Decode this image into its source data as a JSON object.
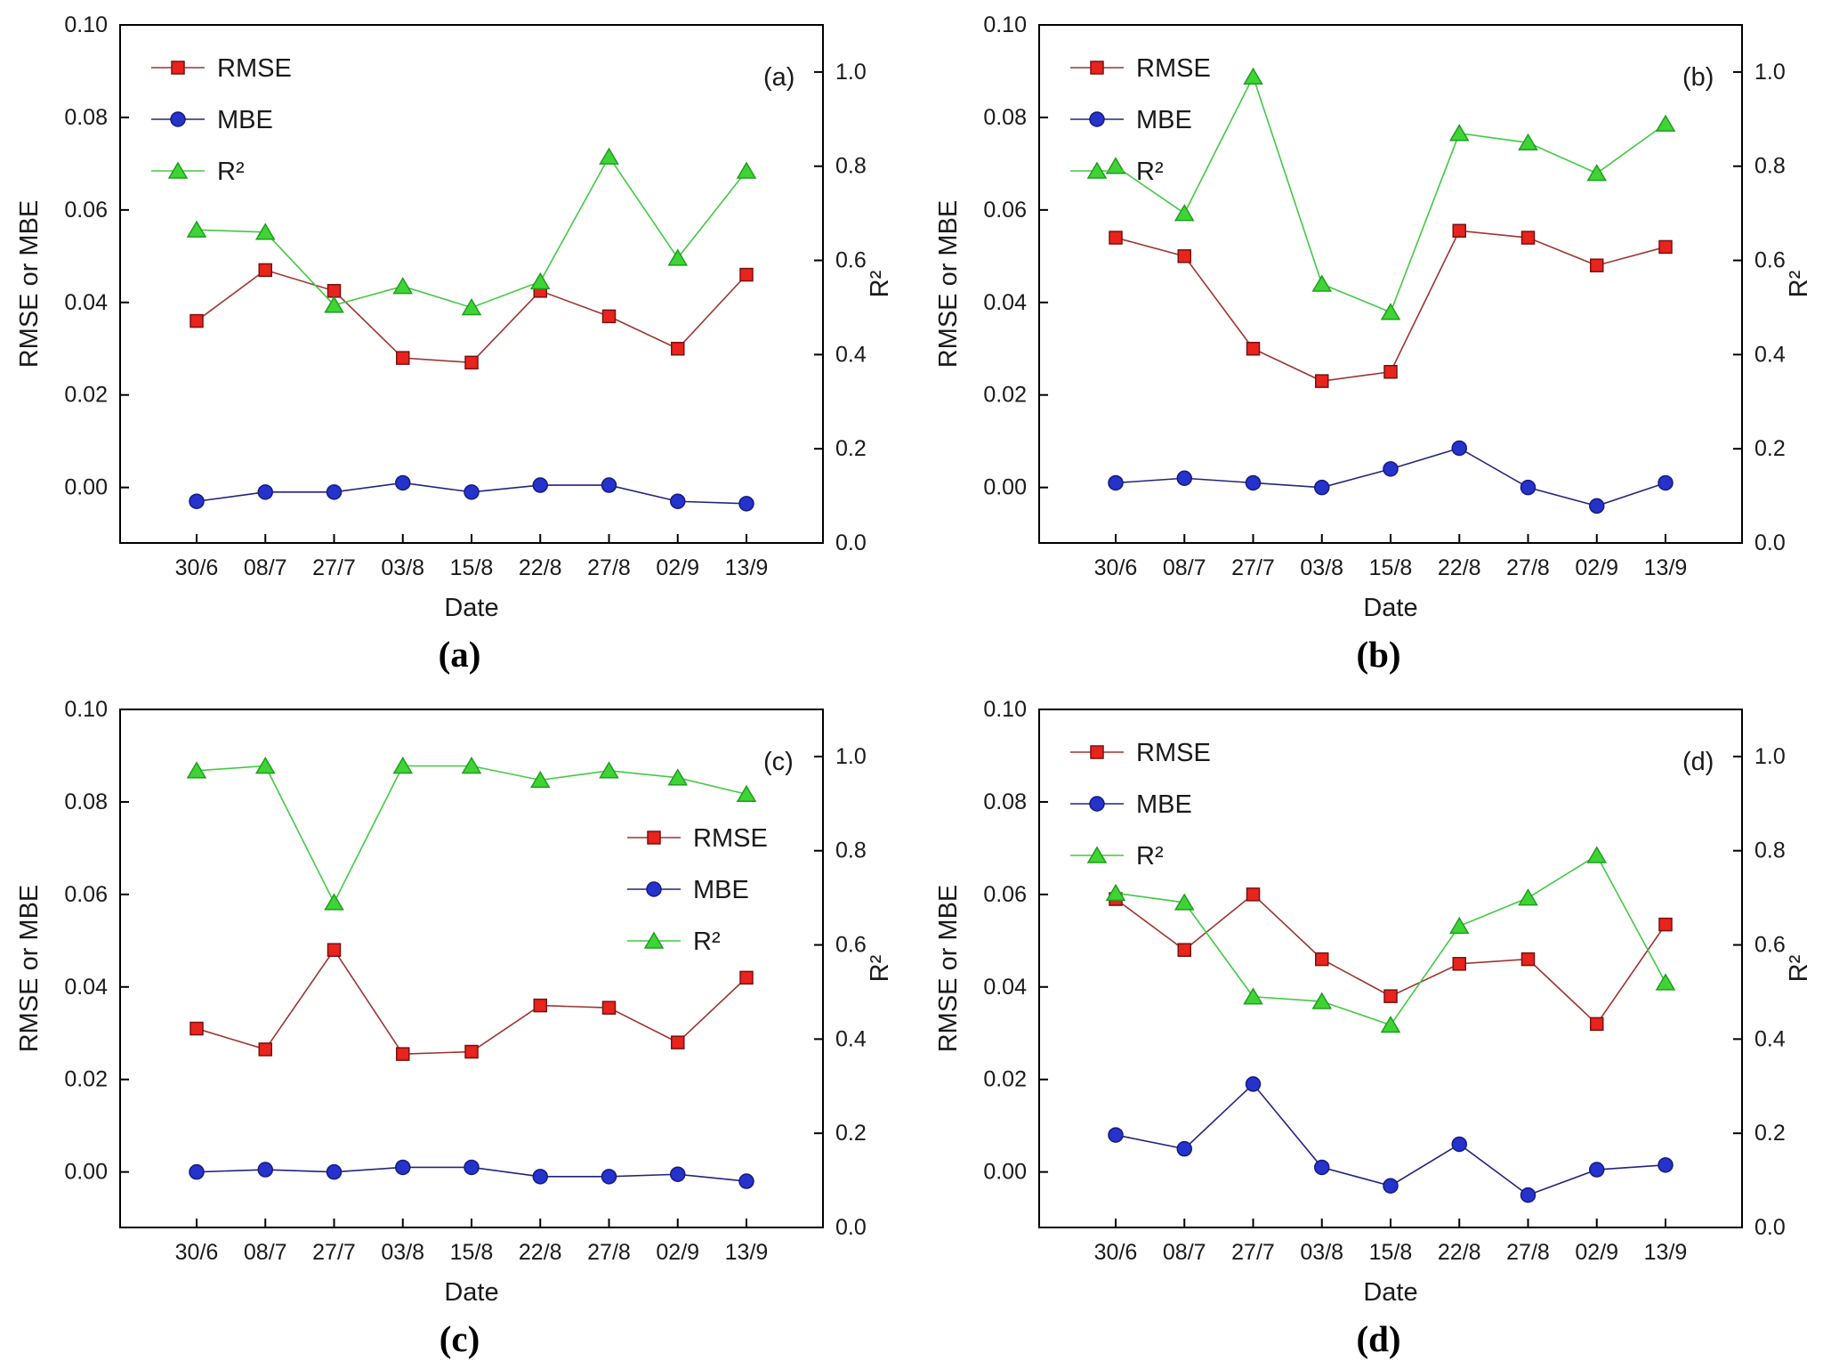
{
  "page": {
    "background": "#ffffff"
  },
  "colors": {
    "rmse_line": "#9c3530",
    "rmse_fill": "#e8241c",
    "rmse_edge": "#7a1010",
    "mbe_line": "#23237f",
    "mbe_fill": "#2632cc",
    "mbe_edge": "#151b7e",
    "r2_line": "#43c943",
    "r2_fill": "#3fd435",
    "r2_edge": "#1e9e1e",
    "axis": "#000000"
  },
  "chart_data": [
    {
      "type": "line",
      "panel_label": "(a)",
      "caption": "(a)",
      "xlabel": "Date",
      "ylabel_left": "RMSE or MBE",
      "ylabel_right": "R²",
      "categories": [
        "30/6",
        "08/7",
        "27/7",
        "03/8",
        "15/8",
        "22/8",
        "27/8",
        "02/9",
        "13/9"
      ],
      "left_axis": {
        "ticks": [
          0,
          0.02,
          0.04,
          0.06,
          0.08,
          0.1
        ],
        "range": [
          -0.012,
          0.1
        ]
      },
      "right_axis": {
        "ticks": [
          0,
          0.2,
          0.4,
          0.6,
          0.8,
          1.0
        ],
        "range": [
          0,
          1.1
        ]
      },
      "legend_position": "top-left",
      "series": [
        {
          "name": "RMSE",
          "label": "RMSE",
          "axis": "left",
          "marker": "square",
          "values": [
            0.036,
            0.047,
            0.0425,
            0.028,
            0.027,
            0.0425,
            0.037,
            0.03,
            0.046
          ]
        },
        {
          "name": "MBE",
          "label": "MBE",
          "axis": "left",
          "marker": "circle",
          "values": [
            -0.003,
            -0.001,
            -0.001,
            0.001,
            -0.001,
            0.0005,
            0.0005,
            -0.003,
            -0.0035
          ]
        },
        {
          "name": "R2",
          "label": "R²",
          "axis": "right",
          "marker": "triangle",
          "values": [
            0.665,
            0.66,
            0.505,
            0.545,
            0.5,
            0.555,
            0.82,
            0.605,
            0.79
          ]
        }
      ]
    },
    {
      "type": "line",
      "panel_label": "(b)",
      "caption": "(b)",
      "xlabel": "Date",
      "ylabel_left": "RMSE or MBE",
      "ylabel_right": "R²",
      "categories": [
        "30/6",
        "08/7",
        "27/7",
        "03/8",
        "15/8",
        "22/8",
        "27/8",
        "02/9",
        "13/9"
      ],
      "left_axis": {
        "ticks": [
          0,
          0.02,
          0.04,
          0.06,
          0.08,
          0.1
        ],
        "range": [
          -0.012,
          0.1
        ]
      },
      "right_axis": {
        "ticks": [
          0,
          0.2,
          0.4,
          0.6,
          0.8,
          1.0
        ],
        "range": [
          0,
          1.1
        ]
      },
      "legend_position": "top-left",
      "series": [
        {
          "name": "RMSE",
          "label": "RMSE",
          "axis": "left",
          "marker": "square",
          "values": [
            0.054,
            0.05,
            0.03,
            0.023,
            0.025,
            0.0555,
            0.054,
            0.048,
            0.052
          ]
        },
        {
          "name": "MBE",
          "label": "MBE",
          "axis": "left",
          "marker": "circle",
          "values": [
            0.001,
            0.002,
            0.001,
            0.0,
            0.004,
            0.0085,
            0.0,
            -0.004,
            0.001
          ]
        },
        {
          "name": "R2",
          "label": "R²",
          "axis": "right",
          "marker": "triangle",
          "values": [
            0.8,
            0.7,
            0.99,
            0.55,
            0.49,
            0.87,
            0.85,
            0.785,
            0.89
          ]
        }
      ]
    },
    {
      "type": "line",
      "panel_label": "(c)",
      "caption": "(c)",
      "xlabel": "Date",
      "ylabel_left": "RMSE or MBE",
      "ylabel_right": "R²",
      "categories": [
        "30/6",
        "08/7",
        "27/7",
        "03/8",
        "15/8",
        "22/8",
        "27/8",
        "02/9",
        "13/9"
      ],
      "left_axis": {
        "ticks": [
          0,
          0.02,
          0.04,
          0.06,
          0.08,
          0.1
        ],
        "range": [
          -0.012,
          0.1
        ]
      },
      "right_axis": {
        "ticks": [
          0,
          0.2,
          0.4,
          0.6,
          0.8,
          1.0
        ],
        "range": [
          0,
          1.1
        ]
      },
      "legend_position": "middle-right",
      "series": [
        {
          "name": "RMSE",
          "label": "RMSE",
          "axis": "left",
          "marker": "square",
          "values": [
            0.031,
            0.0265,
            0.048,
            0.0255,
            0.026,
            0.036,
            0.0355,
            0.028,
            0.042
          ]
        },
        {
          "name": "MBE",
          "label": "MBE",
          "axis": "left",
          "marker": "circle",
          "values": [
            0.0,
            0.0005,
            0.0,
            0.001,
            0.001,
            -0.001,
            -0.001,
            -0.0005,
            -0.002
          ]
        },
        {
          "name": "R2",
          "label": "R²",
          "axis": "right",
          "marker": "triangle",
          "values": [
            0.97,
            0.98,
            0.69,
            0.98,
            0.98,
            0.95,
            0.97,
            0.955,
            0.92
          ]
        }
      ]
    },
    {
      "type": "line",
      "panel_label": "(d)",
      "caption": "(d)",
      "xlabel": "Date",
      "ylabel_left": "RMSE or MBE",
      "ylabel_right": "R²",
      "categories": [
        "30/6",
        "08/7",
        "27/7",
        "03/8",
        "15/8",
        "22/8",
        "27/8",
        "02/9",
        "13/9"
      ],
      "left_axis": {
        "ticks": [
          0,
          0.02,
          0.04,
          0.06,
          0.08,
          0.1
        ],
        "range": [
          -0.012,
          0.1
        ]
      },
      "right_axis": {
        "ticks": [
          0,
          0.2,
          0.4,
          0.6,
          0.8,
          1.0
        ],
        "range": [
          0,
          1.1
        ]
      },
      "legend_position": "top-left",
      "series": [
        {
          "name": "RMSE",
          "label": "RMSE",
          "axis": "left",
          "marker": "square",
          "values": [
            0.059,
            0.048,
            0.06,
            0.046,
            0.038,
            0.045,
            0.046,
            0.032,
            0.0535
          ]
        },
        {
          "name": "MBE",
          "label": "MBE",
          "axis": "left",
          "marker": "circle",
          "values": [
            0.008,
            0.005,
            0.019,
            0.001,
            -0.003,
            0.006,
            -0.005,
            0.0005,
            0.0015
          ]
        },
        {
          "name": "R2",
          "label": "R²",
          "axis": "right",
          "marker": "triangle",
          "values": [
            0.71,
            0.69,
            0.49,
            0.48,
            0.43,
            0.64,
            0.7,
            0.79,
            0.52
          ]
        }
      ]
    }
  ]
}
